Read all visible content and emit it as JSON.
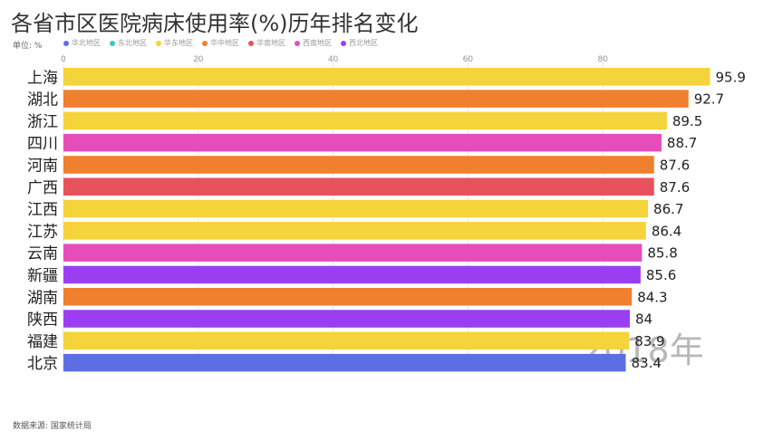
{
  "header": {
    "title": "各省市区医院病床使用率(%)历年排名变化",
    "unit": "单位: %"
  },
  "legend": [
    {
      "label": "华北地区",
      "color": "#5B6FE3"
    },
    {
      "label": "东北地区",
      "color": "#3CC6C6"
    },
    {
      "label": "华东地区",
      "color": "#F5D33A"
    },
    {
      "label": "华中地区",
      "color": "#F07F2E"
    },
    {
      "label": "华南地区",
      "color": "#E8525C"
    },
    {
      "label": "西南地区",
      "color": "#E64DBB"
    },
    {
      "label": "西北地区",
      "color": "#9B3EF2"
    }
  ],
  "footer": {
    "source": "数据来源: 国家统计局"
  },
  "chart_data": {
    "type": "bar",
    "orientation": "horizontal",
    "year_label": "2018年",
    "categories": [
      "上海",
      "湖北",
      "浙江",
      "四川",
      "河南",
      "广西",
      "江西",
      "江苏",
      "云南",
      "新疆",
      "湖南",
      "陕西",
      "福建",
      "北京"
    ],
    "values": [
      95.9,
      92.7,
      89.5,
      88.7,
      87.6,
      87.6,
      86.7,
      86.4,
      85.8,
      85.6,
      84.3,
      84,
      83.9,
      83.4
    ],
    "regions": [
      "华东地区",
      "华中地区",
      "华东地区",
      "西南地区",
      "华中地区",
      "华南地区",
      "华东地区",
      "华东地区",
      "西南地区",
      "西北地区",
      "华中地区",
      "西北地区",
      "华东地区",
      "华北地区"
    ],
    "xticks": [
      0,
      20,
      40,
      60,
      80
    ],
    "xlim": [
      0,
      100
    ],
    "grid": true
  }
}
